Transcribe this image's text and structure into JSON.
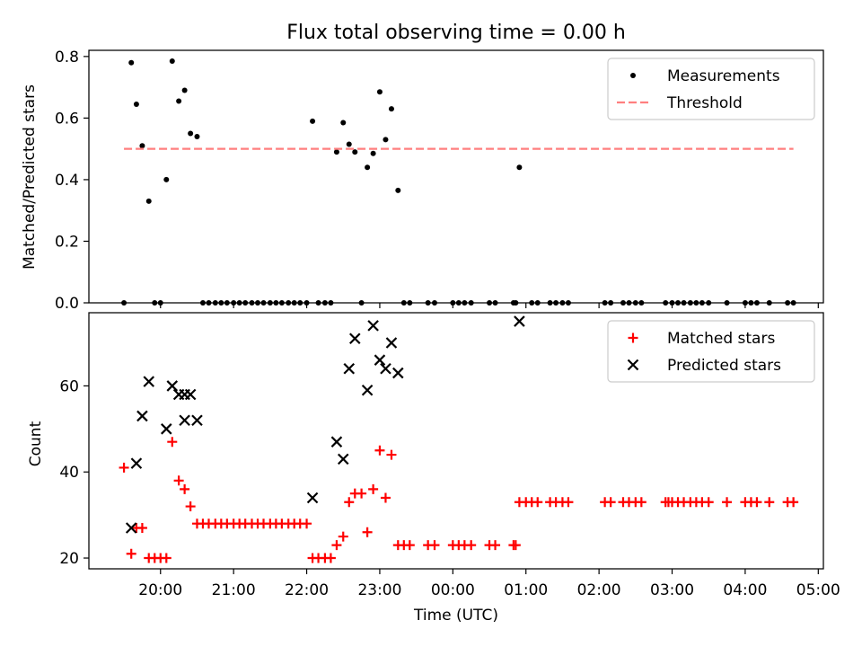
{
  "figure": {
    "title": "Flux total observing time = 0.00 h"
  },
  "chart_data": [
    {
      "type": "scatter",
      "panel": "top",
      "title": "Flux total observing time = 0.00 h",
      "xlabel": "",
      "ylabel": "Matched/Predicted stars",
      "ylim": [
        0,
        0.82
      ],
      "yticks": [
        0.0,
        0.2,
        0.4,
        0.6,
        0.8
      ],
      "ytick_labels": [
        "0.0",
        "0.2",
        "0.4",
        "0.6",
        "0.8"
      ],
      "x_unit": "hours since 20:00 UTC",
      "xlim": [
        -0.98,
        9.07
      ],
      "xticks": [
        0,
        1,
        2,
        3,
        4,
        5,
        6,
        7,
        8,
        9
      ],
      "xtick_labels": [],
      "grid": false,
      "legend": "upper right",
      "series": [
        {
          "name": "Measurements",
          "kind": "points",
          "color": "#000000",
          "points": [
            [
              -0.5,
              0.0
            ],
            [
              -0.4,
              0.78
            ],
            [
              -0.33,
              0.645
            ],
            [
              -0.25,
              0.51
            ],
            [
              -0.16,
              0.33
            ],
            [
              -0.08,
              0.0
            ],
            [
              0.0,
              0.0
            ],
            [
              0.08,
              0.4
            ],
            [
              0.16,
              0.785
            ],
            [
              0.25,
              0.655
            ],
            [
              0.33,
              0.69
            ],
            [
              0.41,
              0.55
            ],
            [
              0.5,
              0.54
            ],
            [
              0.58,
              0.0
            ],
            [
              0.66,
              0.0
            ],
            [
              0.75,
              0.0
            ],
            [
              0.83,
              0.0
            ],
            [
              0.91,
              0.0
            ],
            [
              1.0,
              0.0
            ],
            [
              1.08,
              0.0
            ],
            [
              1.16,
              0.0
            ],
            [
              1.25,
              0.0
            ],
            [
              1.33,
              0.0
            ],
            [
              1.41,
              0.0
            ],
            [
              1.5,
              0.0
            ],
            [
              1.58,
              0.0
            ],
            [
              1.66,
              0.0
            ],
            [
              1.75,
              0.0
            ],
            [
              1.83,
              0.0
            ],
            [
              1.91,
              0.0
            ],
            [
              2.0,
              0.0
            ],
            [
              2.08,
              0.59
            ],
            [
              2.16,
              0.0
            ],
            [
              2.25,
              0.0
            ],
            [
              2.33,
              0.0
            ],
            [
              2.41,
              0.49
            ],
            [
              2.5,
              0.585
            ],
            [
              2.58,
              0.515
            ],
            [
              2.66,
              0.49
            ],
            [
              2.75,
              0.0
            ],
            [
              2.83,
              0.44
            ],
            [
              2.91,
              0.485
            ],
            [
              3.0,
              0.685
            ],
            [
              3.08,
              0.53
            ],
            [
              3.16,
              0.63
            ],
            [
              3.25,
              0.365
            ],
            [
              3.33,
              0.0
            ],
            [
              3.41,
              0.0
            ],
            [
              3.66,
              0.0
            ],
            [
              3.75,
              0.0
            ],
            [
              4.0,
              0.0
            ],
            [
              4.08,
              0.0
            ],
            [
              4.16,
              0.0
            ],
            [
              4.25,
              0.0
            ],
            [
              4.5,
              0.0
            ],
            [
              4.58,
              0.0
            ],
            [
              4.83,
              0.0
            ],
            [
              4.86,
              0.0
            ],
            [
              4.91,
              0.44
            ],
            [
              5.08,
              0.0
            ],
            [
              5.16,
              0.0
            ],
            [
              5.33,
              0.0
            ],
            [
              5.41,
              0.0
            ],
            [
              5.5,
              0.0
            ],
            [
              5.58,
              0.0
            ],
            [
              6.08,
              0.0
            ],
            [
              6.16,
              0.0
            ],
            [
              6.33,
              0.0
            ],
            [
              6.41,
              0.0
            ],
            [
              6.5,
              0.0
            ],
            [
              6.58,
              0.0
            ],
            [
              6.91,
              0.0
            ],
            [
              7.0,
              0.0
            ],
            [
              7.08,
              0.0
            ],
            [
              7.16,
              0.0
            ],
            [
              7.25,
              0.0
            ],
            [
              7.33,
              0.0
            ],
            [
              7.41,
              0.0
            ],
            [
              7.5,
              0.0
            ],
            [
              7.75,
              0.0
            ],
            [
              8.0,
              0.0
            ],
            [
              8.08,
              0.0
            ],
            [
              8.16,
              0.0
            ],
            [
              8.33,
              0.0
            ],
            [
              8.58,
              0.0
            ],
            [
              8.66,
              0.0
            ]
          ]
        },
        {
          "name": "Threshold",
          "kind": "dashed-line",
          "color": "#ff7f7f",
          "points": [
            [
              -0.5,
              0.5
            ],
            [
              8.66,
              0.5
            ]
          ]
        }
      ]
    },
    {
      "type": "scatter",
      "panel": "bottom",
      "title": "",
      "xlabel": "Time (UTC)",
      "ylabel": "Count",
      "ylim": [
        17.5,
        77.0
      ],
      "yticks": [
        20,
        40,
        60
      ],
      "ytick_labels": [
        "20",
        "40",
        "60"
      ],
      "x_unit": "hours since 20:00 UTC",
      "xlim": [
        -0.98,
        9.07
      ],
      "xticks": [
        0,
        1,
        2,
        3,
        4,
        5,
        6,
        7,
        8,
        9
      ],
      "xtick_labels": [
        "20:00",
        "21:00",
        "22:00",
        "23:00",
        "00:00",
        "01:00",
        "02:00",
        "03:00",
        "04:00",
        "05:00"
      ],
      "grid": false,
      "legend": "upper right",
      "series": [
        {
          "name": "Matched stars",
          "kind": "plus",
          "color": "#ff0000",
          "points": [
            [
              -0.5,
              41
            ],
            [
              -0.4,
              21
            ],
            [
              -0.33,
              27
            ],
            [
              -0.25,
              27
            ],
            [
              -0.16,
              20
            ],
            [
              -0.08,
              20
            ],
            [
              0.0,
              20
            ],
            [
              0.08,
              20
            ],
            [
              0.16,
              47
            ],
            [
              0.25,
              38
            ],
            [
              0.33,
              36
            ],
            [
              0.41,
              32
            ],
            [
              0.5,
              28
            ],
            [
              0.58,
              28
            ],
            [
              0.66,
              28
            ],
            [
              0.75,
              28
            ],
            [
              0.83,
              28
            ],
            [
              0.91,
              28
            ],
            [
              1.0,
              28
            ],
            [
              1.08,
              28
            ],
            [
              1.16,
              28
            ],
            [
              1.25,
              28
            ],
            [
              1.33,
              28
            ],
            [
              1.41,
              28
            ],
            [
              1.5,
              28
            ],
            [
              1.58,
              28
            ],
            [
              1.66,
              28
            ],
            [
              1.75,
              28
            ],
            [
              1.83,
              28
            ],
            [
              1.91,
              28
            ],
            [
              2.0,
              28
            ],
            [
              2.08,
              20
            ],
            [
              2.16,
              20
            ],
            [
              2.25,
              20
            ],
            [
              2.33,
              20
            ],
            [
              2.41,
              23
            ],
            [
              2.5,
              25
            ],
            [
              2.58,
              33
            ],
            [
              2.66,
              35
            ],
            [
              2.75,
              35
            ],
            [
              2.83,
              26
            ],
            [
              2.91,
              36
            ],
            [
              3.0,
              45
            ],
            [
              3.08,
              34
            ],
            [
              3.16,
              44
            ],
            [
              3.25,
              23
            ],
            [
              3.33,
              23
            ],
            [
              3.41,
              23
            ],
            [
              3.66,
              23
            ],
            [
              3.75,
              23
            ],
            [
              4.0,
              23
            ],
            [
              4.08,
              23
            ],
            [
              4.16,
              23
            ],
            [
              4.25,
              23
            ],
            [
              4.5,
              23
            ],
            [
              4.58,
              23
            ],
            [
              4.83,
              23
            ],
            [
              4.86,
              23
            ],
            [
              4.91,
              33
            ],
            [
              5.0,
              33
            ],
            [
              5.08,
              33
            ],
            [
              5.16,
              33
            ],
            [
              5.33,
              33
            ],
            [
              5.41,
              33
            ],
            [
              5.5,
              33
            ],
            [
              5.58,
              33
            ],
            [
              6.08,
              33
            ],
            [
              6.16,
              33
            ],
            [
              6.33,
              33
            ],
            [
              6.41,
              33
            ],
            [
              6.5,
              33
            ],
            [
              6.58,
              33
            ],
            [
              6.91,
              33
            ],
            [
              6.95,
              33
            ],
            [
              7.0,
              33
            ],
            [
              7.08,
              33
            ],
            [
              7.16,
              33
            ],
            [
              7.25,
              33
            ],
            [
              7.33,
              33
            ],
            [
              7.41,
              33
            ],
            [
              7.5,
              33
            ],
            [
              7.75,
              33
            ],
            [
              8.0,
              33
            ],
            [
              8.08,
              33
            ],
            [
              8.16,
              33
            ],
            [
              8.33,
              33
            ],
            [
              8.58,
              33
            ],
            [
              8.66,
              33
            ]
          ]
        },
        {
          "name": "Predicted stars",
          "kind": "x",
          "color": "#000000",
          "points": [
            [
              -0.4,
              27
            ],
            [
              -0.33,
              42
            ],
            [
              -0.25,
              53
            ],
            [
              -0.16,
              61
            ],
            [
              0.08,
              50
            ],
            [
              0.16,
              60
            ],
            [
              0.25,
              58
            ],
            [
              0.33,
              52
            ],
            [
              0.33,
              58
            ],
            [
              0.41,
              58
            ],
            [
              0.5,
              52
            ],
            [
              2.08,
              34
            ],
            [
              2.41,
              47
            ],
            [
              2.5,
              43
            ],
            [
              2.58,
              64
            ],
            [
              2.66,
              71
            ],
            [
              2.83,
              59
            ],
            [
              2.91,
              74
            ],
            [
              3.0,
              66
            ],
            [
              3.08,
              64
            ],
            [
              3.16,
              70
            ],
            [
              3.25,
              63
            ],
            [
              4.91,
              75
            ]
          ]
        }
      ]
    }
  ]
}
